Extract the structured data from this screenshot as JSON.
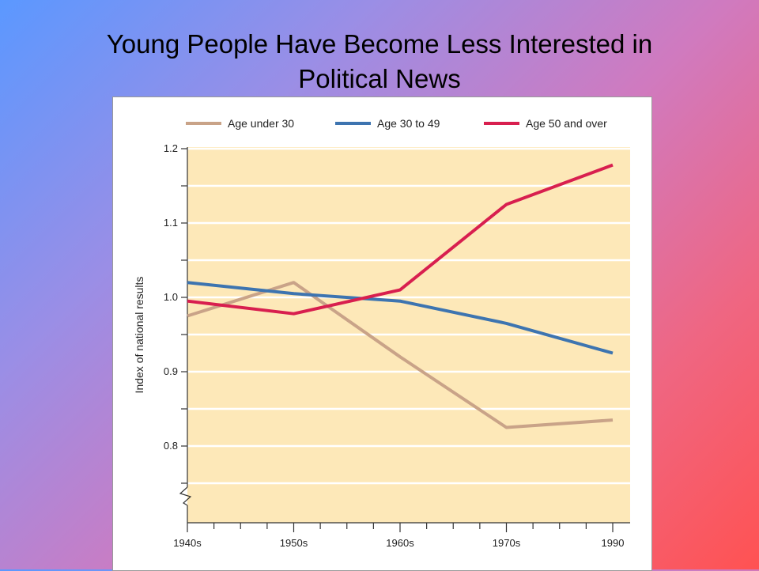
{
  "slide": {
    "title_line1": "Young People Have Become Less Interested in",
    "title_line2": "Political News"
  },
  "chart_data": {
    "type": "line",
    "title": "Young People Have Become Less Interested in Political News",
    "xlabel": "",
    "ylabel": "Index of national results",
    "categories": [
      "1940s",
      "1950s",
      "1960s",
      "1970s",
      "1990"
    ],
    "ylim": [
      0.7,
      1.2
    ],
    "yticks": [
      0.8,
      0.9,
      1.0,
      1.1,
      1.2
    ],
    "ytick_labels": [
      "0.8",
      "0.9",
      "1.0",
      "1.1",
      "1.2"
    ],
    "axis_break": true,
    "grid": true,
    "legend_position": "top",
    "plot_background": "#fde8b8",
    "series": [
      {
        "name": "Age under 30",
        "color": "#c9a388",
        "values": [
          0.975,
          1.02,
          0.92,
          0.825,
          0.835
        ]
      },
      {
        "name": "Age 30 to 49",
        "color": "#3d74b0",
        "values": [
          1.02,
          1.005,
          0.995,
          0.965,
          0.925
        ]
      },
      {
        "name": "Age 50 and over",
        "color": "#d81f4f",
        "values": [
          0.995,
          0.978,
          1.01,
          1.125,
          1.178
        ]
      }
    ]
  }
}
